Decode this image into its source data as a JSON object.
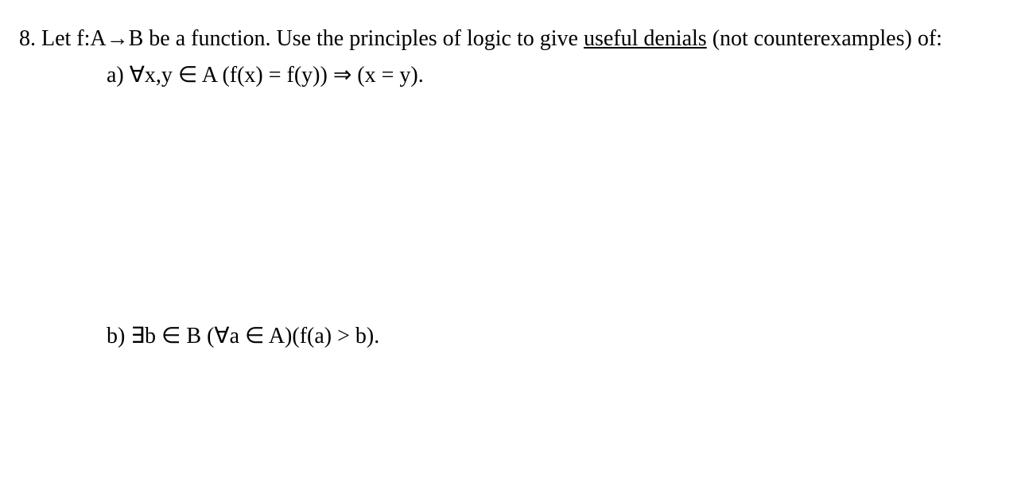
{
  "problem": {
    "number": "8.",
    "intro_before_underline": "Let f:A→B  be a function.  Use the principles of logic to give ",
    "underlined_text": "useful denials",
    "intro_after_underline": " (not counterexamples) of:",
    "part_a_label": "a) ",
    "part_a_statement": "∀x,y ∈ A (f(x) = f(y)) ⇒ (x = y).",
    "part_b_label": "b) ",
    "part_b_statement": "∃b ∈ B (∀a ∈ A)(f(a) > b)."
  },
  "style": {
    "font_family": "Times New Roman",
    "font_size_pt": 21,
    "text_color": "#000000",
    "background_color": "#ffffff",
    "underline_style": "solid"
  }
}
